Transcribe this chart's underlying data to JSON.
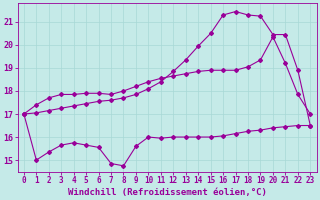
{
  "xlabel": "Windchill (Refroidissement éolien,°C)",
  "bg_color": "#c5eae8",
  "grid_color": "#a8d8d6",
  "line_color": "#990099",
  "xlim": [
    -0.5,
    23.5
  ],
  "ylim": [
    14.5,
    21.8
  ],
  "yticks": [
    15,
    16,
    17,
    18,
    19,
    20,
    21
  ],
  "xticks": [
    0,
    1,
    2,
    3,
    4,
    5,
    6,
    7,
    8,
    9,
    10,
    11,
    12,
    13,
    14,
    15,
    16,
    17,
    18,
    19,
    20,
    21,
    22,
    23
  ],
  "line1_x": [
    0,
    1,
    2,
    3,
    4,
    5,
    6,
    7,
    8,
    9,
    10,
    11,
    12,
    13,
    14,
    15,
    16,
    17,
    18,
    19,
    20,
    21,
    22,
    23
  ],
  "line1_y": [
    17.0,
    17.4,
    17.7,
    17.85,
    17.85,
    17.9,
    17.9,
    17.85,
    18.0,
    18.2,
    18.4,
    18.55,
    18.65,
    18.75,
    18.85,
    18.9,
    18.9,
    18.9,
    19.05,
    19.35,
    20.35,
    19.2,
    17.85,
    17.0
  ],
  "line2_x": [
    0,
    1,
    2,
    3,
    4,
    5,
    6,
    7,
    8,
    9,
    10,
    11,
    12,
    13,
    14,
    15,
    16,
    17,
    18,
    19,
    20,
    21,
    22,
    23
  ],
  "line2_y": [
    17.0,
    17.05,
    17.15,
    17.25,
    17.35,
    17.45,
    17.55,
    17.6,
    17.7,
    17.85,
    18.1,
    18.4,
    18.85,
    19.35,
    19.95,
    20.5,
    21.3,
    21.45,
    21.3,
    21.25,
    20.45,
    20.45,
    18.9,
    16.5
  ],
  "line3_x": [
    0,
    1,
    2,
    3,
    4,
    5,
    6,
    7,
    8,
    9,
    10,
    11,
    12,
    13,
    14,
    15,
    16,
    17,
    18,
    19,
    20,
    21,
    22,
    23
  ],
  "line3_y": [
    17.0,
    15.0,
    15.35,
    15.65,
    15.75,
    15.65,
    15.55,
    14.85,
    14.75,
    15.6,
    16.0,
    15.95,
    16.0,
    16.0,
    16.0,
    16.0,
    16.05,
    16.15,
    16.25,
    16.3,
    16.4,
    16.45,
    16.5,
    16.5
  ],
  "marker": "D",
  "markersize": 2.0,
  "linewidth": 0.8,
  "tick_labelsize": 5.5,
  "xlabel_fontsize": 6.5
}
